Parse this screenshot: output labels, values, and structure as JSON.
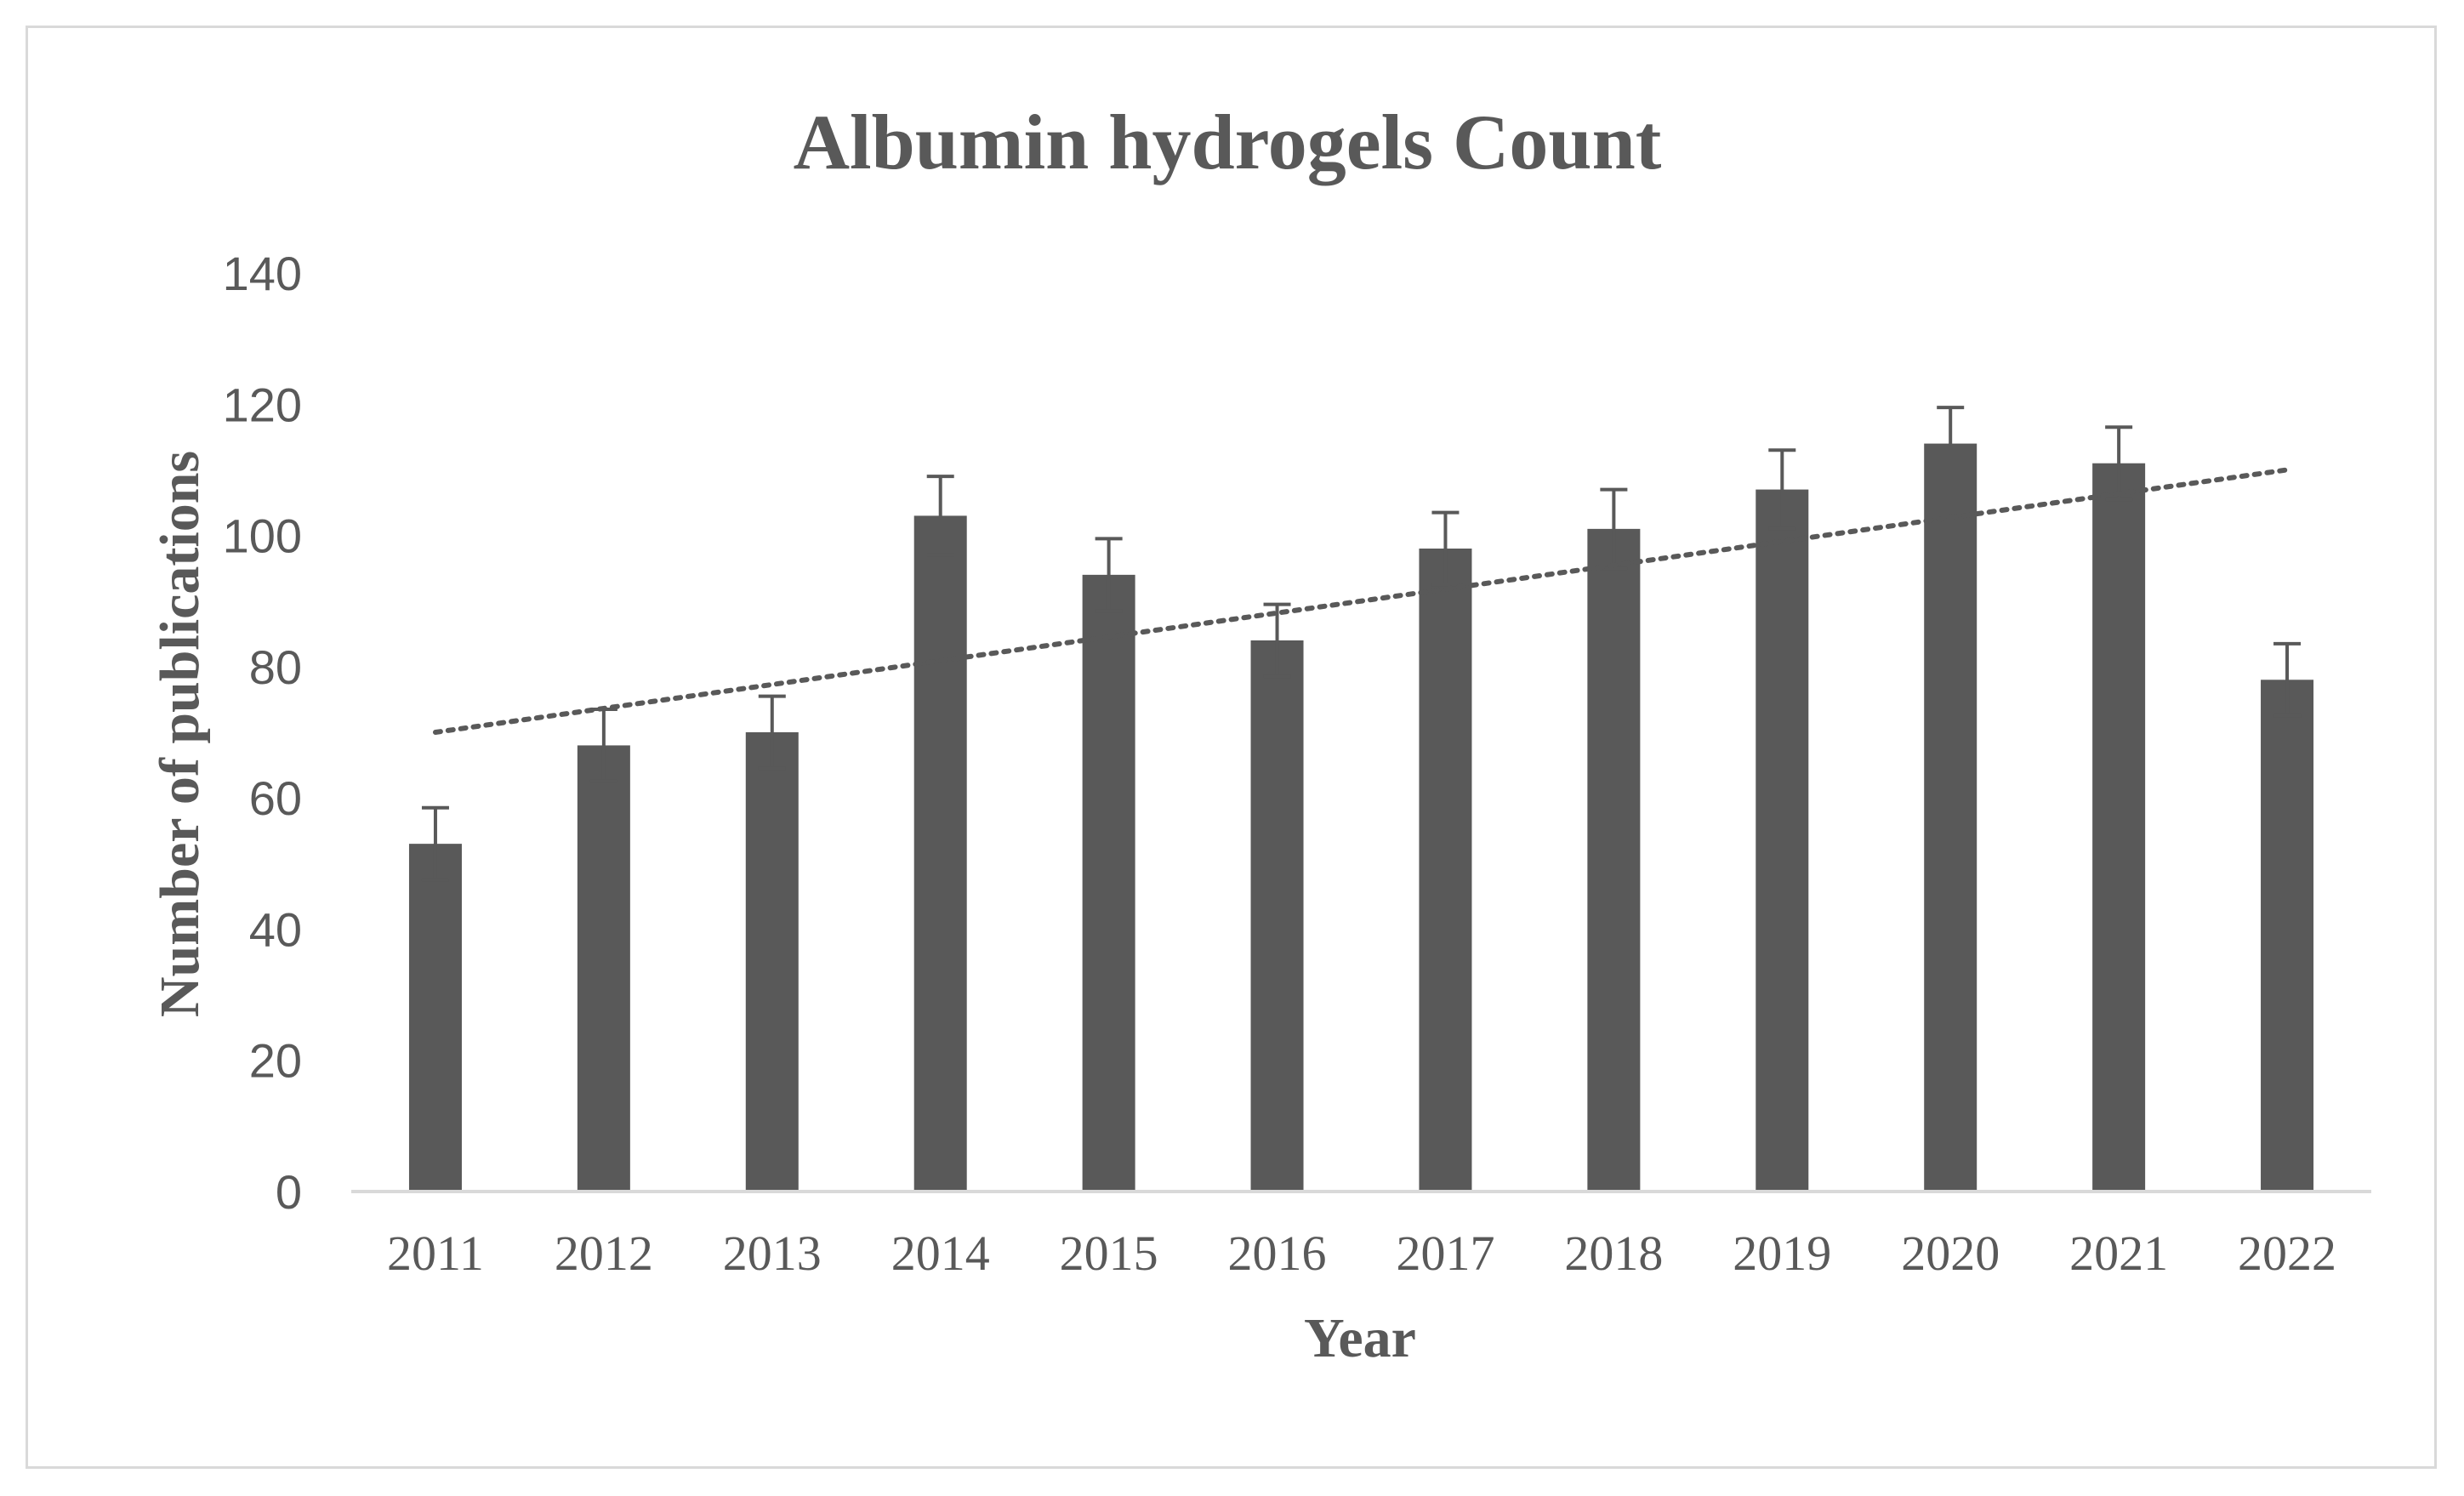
{
  "chart_data": {
    "type": "bar",
    "title": "Albumin hydrogels Count",
    "xlabel": "Year",
    "ylabel": "Number of publications",
    "categories": [
      "2011",
      "2012",
      "2013",
      "2014",
      "2015",
      "2016",
      "2017",
      "2018",
      "2019",
      "2020",
      "2021",
      "2022"
    ],
    "series": [
      {
        "values": [
          53,
          68,
          70,
          103,
          94,
          84,
          98,
          101,
          107,
          114,
          111,
          78
        ],
        "error": [
          5.5,
          5.5,
          5.5,
          6,
          5.5,
          5.5,
          5.5,
          6,
          6,
          5.5,
          5.5,
          5.5
        ],
        "color": "#595959"
      }
    ],
    "trendline": {
      "type": "linear",
      "style": "dotted",
      "color": "#595959",
      "start": 70,
      "end": 110
    },
    "ylim": [
      0,
      140
    ],
    "yticks": [
      0,
      20,
      40,
      60,
      80,
      100,
      120,
      140
    ],
    "grid": false,
    "legend": "none"
  }
}
